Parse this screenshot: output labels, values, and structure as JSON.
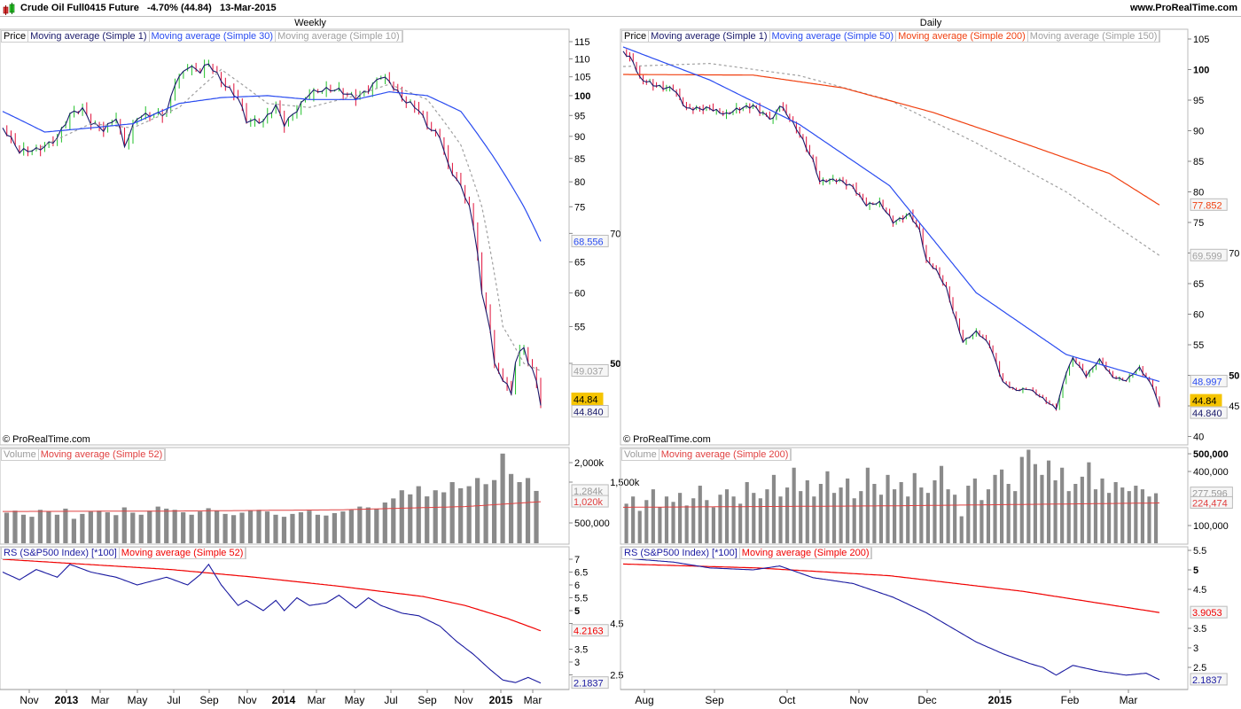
{
  "header": {
    "title": "Crude Oil Full0415 Future",
    "change": "-4.70% (44.84)",
    "date": "13-Mar-2015",
    "site": "www.ProRealTime.com"
  },
  "colors": {
    "up": "#22c02a",
    "down": "#e0103a",
    "price_line": "#1a1a6a",
    "ma_blue": "#2a4cf0",
    "ma_gray": "#a0a0a0",
    "ma_red": "#f04010",
    "vol": "#8a8a8a",
    "vol_ma": "#e04040",
    "rs": "#1a1aa0",
    "rs_ma": "#f00000",
    "last_bg": "#f5c400"
  },
  "copyright": "© ProRealTime.com",
  "weekly": {
    "period": "Weekly",
    "legend": [
      "Price",
      "Moving average (Simple 1)",
      "Moving average (Simple 30)",
      "Moving average (Simple 10)"
    ],
    "y_ticks": [
      "115",
      "110",
      "105",
      "100",
      "95",
      "90",
      "85",
      "80",
      "75",
      "70",
      "65",
      "60",
      "55",
      "50"
    ],
    "x_ticks": [
      "Nov",
      "2013",
      "Mar",
      "May",
      "Jul",
      "Sep",
      "Nov",
      "2014",
      "Mar",
      "May",
      "Jul",
      "Sep",
      "Nov",
      "2015",
      "Mar"
    ],
    "labels": {
      "ma30": "68.556",
      "ma10": "49.037",
      "last": "44.84",
      "close": "44.840"
    },
    "closes": [
      [
        0,
        92
      ],
      [
        4,
        86
      ],
      [
        8,
        87
      ],
      [
        13,
        90
      ],
      [
        16,
        95
      ],
      [
        19,
        96
      ],
      [
        21,
        93
      ],
      [
        24,
        92
      ],
      [
        27,
        95
      ],
      [
        29,
        88
      ],
      [
        32,
        94
      ],
      [
        36,
        95
      ],
      [
        39,
        96
      ],
      [
        41,
        104
      ],
      [
        44,
        108
      ],
      [
        47,
        106
      ],
      [
        49,
        108
      ],
      [
        52,
        104
      ],
      [
        56,
        100
      ],
      [
        58,
        94
      ],
      [
        62,
        93
      ],
      [
        65,
        97
      ],
      [
        67,
        93
      ],
      [
        70,
        97
      ],
      [
        73,
        101
      ],
      [
        77,
        101
      ],
      [
        80,
        101
      ],
      [
        84,
        100
      ],
      [
        87,
        102
      ],
      [
        90,
        105
      ],
      [
        92,
        103
      ],
      [
        95,
        99
      ],
      [
        99,
        97
      ],
      [
        101,
        93
      ],
      [
        104,
        90
      ],
      [
        106,
        83
      ],
      [
        108,
        80
      ],
      [
        110,
        77
      ],
      [
        111,
        75
      ],
      [
        113,
        67
      ],
      [
        114,
        60
      ],
      [
        116,
        55
      ],
      [
        117,
        50
      ],
      [
        119,
        48
      ],
      [
        121,
        46
      ],
      [
        122,
        50
      ],
      [
        124,
        52
      ],
      [
        125,
        50
      ],
      [
        127,
        48
      ],
      [
        128,
        44.84
      ]
    ],
    "ma30": [
      [
        0,
        96
      ],
      [
        10,
        91
      ],
      [
        21,
        92
      ],
      [
        31,
        93
      ],
      [
        42,
        98
      ],
      [
        52,
        99.5
      ],
      [
        63,
        100
      ],
      [
        73,
        99
      ],
      [
        84,
        99
      ],
      [
        92,
        101
      ],
      [
        101,
        100
      ],
      [
        109,
        96
      ],
      [
        117,
        85
      ],
      [
        124,
        75
      ],
      [
        128,
        68.556
      ]
    ],
    "ma10": [
      [
        8,
        87
      ],
      [
        21,
        93
      ],
      [
        31,
        92
      ],
      [
        42,
        97
      ],
      [
        52,
        107
      ],
      [
        63,
        98
      ],
      [
        73,
        97
      ],
      [
        84,
        100
      ],
      [
        92,
        103
      ],
      [
        101,
        99
      ],
      [
        109,
        88
      ],
      [
        114,
        75
      ],
      [
        119,
        55
      ],
      [
        124,
        50
      ],
      [
        128,
        49.037
      ]
    ],
    "volume": {
      "legend": [
        "Volume",
        "Moving average (Simple 52)"
      ],
      "y_ticks": [
        "2,000k",
        "1,500k",
        "500,000"
      ],
      "labels": {
        "vol": "1,284k",
        "ma": "1,020k"
      },
      "values_k": [
        750,
        800,
        700,
        650,
        820,
        780,
        700,
        850,
        600,
        720,
        780,
        800,
        760,
        690,
        880,
        750,
        700,
        800,
        900,
        850,
        820,
        760,
        700,
        780,
        860,
        800,
        720,
        690,
        750,
        800,
        820,
        780,
        700,
        650,
        720,
        760,
        800,
        700,
        680,
        740,
        780,
        820,
        900,
        880,
        850,
        1000,
        1100,
        1300,
        1200,
        1400,
        1150,
        1300,
        1250,
        1500,
        1350,
        1400,
        1600,
        1450,
        1550,
        2200,
        1700,
        1500,
        1600,
        1284
      ],
      "ma_k": [
        [
          0,
          780
        ],
        [
          40,
          790
        ],
        [
          80,
          820
        ],
        [
          110,
          900
        ],
        [
          128,
          1020
        ]
      ]
    },
    "rs": {
      "legend": [
        "RS (S&P500 Index) [*100]",
        "Moving average (Simple 52)"
      ],
      "y_ticks": [
        "7",
        "6.5",
        "6",
        "5.5",
        "5",
        "4.5",
        "3.5",
        "3",
        "2.5"
      ],
      "labels": {
        "ma": "4.2163",
        "rs": "2.1837"
      },
      "values": [
        [
          0,
          6.5
        ],
        [
          4,
          6.2
        ],
        [
          8,
          6.6
        ],
        [
          13,
          6.3
        ],
        [
          16,
          6.8
        ],
        [
          21,
          6.5
        ],
        [
          27,
          6.3
        ],
        [
          32,
          6.0
        ],
        [
          39,
          6.3
        ],
        [
          44,
          6.0
        ],
        [
          47,
          6.4
        ],
        [
          49,
          6.8
        ],
        [
          52,
          6.0
        ],
        [
          56,
          5.2
        ],
        [
          58,
          5.4
        ],
        [
          62,
          5.0
        ],
        [
          65,
          5.4
        ],
        [
          67,
          5.0
        ],
        [
          70,
          5.5
        ],
        [
          73,
          5.2
        ],
        [
          77,
          5.3
        ],
        [
          80,
          5.6
        ],
        [
          84,
          5.1
        ],
        [
          87,
          5.5
        ],
        [
          90,
          5.2
        ],
        [
          95,
          4.9
        ],
        [
          99,
          4.8
        ],
        [
          104,
          4.4
        ],
        [
          108,
          3.8
        ],
        [
          112,
          3.3
        ],
        [
          116,
          2.7
        ],
        [
          119,
          2.3
        ],
        [
          122,
          2.2
        ],
        [
          125,
          2.4
        ],
        [
          128,
          2.1837
        ]
      ],
      "ma": [
        [
          0,
          7.0
        ],
        [
          20,
          6.8
        ],
        [
          40,
          6.6
        ],
        [
          60,
          6.3
        ],
        [
          80,
          5.95
        ],
        [
          100,
          5.55
        ],
        [
          110,
          5.2
        ],
        [
          120,
          4.7
        ],
        [
          128,
          4.2163
        ]
      ]
    }
  },
  "daily": {
    "period": "Daily",
    "legend": [
      "Price",
      "Moving average (Simple 1)",
      "Moving average (Simple 50)",
      "Moving average (Simple 200)",
      "Moving average (Simple 150)"
    ],
    "y_ticks": [
      "105",
      "100",
      "95",
      "90",
      "85",
      "80",
      "75",
      "70",
      "65",
      "60",
      "55",
      "50",
      "45",
      "40"
    ],
    "x_ticks": [
      "Aug",
      "Sep",
      "Oct",
      "Nov",
      "Dec",
      "2015",
      "Feb",
      "Mar"
    ],
    "labels": {
      "ma200": "77.852",
      "ma150": "69.599",
      "ma50": "48.997",
      "last": "44.84",
      "close": "44.840"
    },
    "closes": [
      [
        0,
        103
      ],
      [
        3,
        101
      ],
      [
        5,
        98.3
      ],
      [
        10,
        97.6
      ],
      [
        15,
        96.9
      ],
      [
        19,
        93.3
      ],
      [
        26,
        94
      ],
      [
        31,
        92.5
      ],
      [
        39,
        94.3
      ],
      [
        45,
        91.8
      ],
      [
        47,
        94
      ],
      [
        53,
        89.6
      ],
      [
        57,
        85.3
      ],
      [
        59,
        81.7
      ],
      [
        65,
        81.7
      ],
      [
        69,
        81
      ],
      [
        73,
        78
      ],
      [
        77,
        78
      ],
      [
        81,
        75
      ],
      [
        86,
        76.6
      ],
      [
        89,
        73.7
      ],
      [
        91,
        68.6
      ],
      [
        94,
        67
      ],
      [
        97,
        64.3
      ],
      [
        99,
        60.7
      ],
      [
        102,
        55.6
      ],
      [
        106,
        57
      ],
      [
        110,
        54.9
      ],
      [
        114,
        49
      ],
      [
        118,
        47.6
      ],
      [
        122,
        47.6
      ],
      [
        126,
        46.2
      ],
      [
        130,
        44.7
      ],
      [
        133,
        50.5
      ],
      [
        135,
        52.7
      ],
      [
        139,
        49.8
      ],
      [
        143,
        52.7
      ],
      [
        147,
        49.8
      ],
      [
        151,
        49
      ],
      [
        155,
        51.2
      ],
      [
        159,
        48.3
      ],
      [
        161,
        44.84
      ]
    ],
    "ma50": [
      [
        0,
        103.7
      ],
      [
        26,
        98.3
      ],
      [
        53,
        91
      ],
      [
        80,
        81
      ],
      [
        106,
        63.5
      ],
      [
        133,
        53.4
      ],
      [
        161,
        48.997
      ]
    ],
    "ma200": [
      [
        0,
        99.2
      ],
      [
        39,
        99.1
      ],
      [
        66,
        97
      ],
      [
        93,
        93
      ],
      [
        120,
        88
      ],
      [
        146,
        83
      ],
      [
        161,
        77.852
      ]
    ],
    "ma150": [
      [
        0,
        100.5
      ],
      [
        26,
        101
      ],
      [
        53,
        99
      ],
      [
        80,
        95
      ],
      [
        106,
        88
      ],
      [
        133,
        80
      ],
      [
        161,
        69.599
      ]
    ],
    "volume": {
      "legend": [
        "Volume",
        "Moving average (Simple 200)"
      ],
      "y_ticks": [
        "500,000",
        "400,000",
        "100,000"
      ],
      "labels": {
        "vol": "277,596",
        "ma": "224,474"
      },
      "values_k": [
        220,
        260,
        180,
        240,
        300,
        200,
        260,
        230,
        280,
        210,
        250,
        320,
        240,
        200,
        270,
        300,
        260,
        220,
        340,
        280,
        250,
        300,
        380,
        260,
        310,
        420,
        290,
        350,
        260,
        330,
        400,
        280,
        310,
        360,
        250,
        290,
        420,
        330,
        270,
        380,
        300,
        340,
        260,
        390,
        310,
        280,
        350,
        430,
        300,
        270,
        150,
        320,
        360,
        240,
        300,
        380,
        410,
        330,
        290,
        480,
        520,
        440,
        380,
        460,
        350,
        420,
        290,
        330,
        370,
        450,
        300,
        360,
        280,
        340,
        310,
        290,
        320,
        300,
        260,
        278
      ],
      "ma_k": [
        [
          0,
          200
        ],
        [
          80,
          208
        ],
        [
          161,
          224
        ]
      ]
    },
    "rs": {
      "legend": [
        "RS (S&P500 Index) [*100]",
        "Moving average (Simple 200)"
      ],
      "y_ticks": [
        "5.5",
        "5",
        "4.5",
        "3.5",
        "3",
        "2.5"
      ],
      "labels": {
        "ma": "3.9053",
        "rs": "2.1837"
      },
      "values": [
        [
          0,
          5.3
        ],
        [
          15,
          5.2
        ],
        [
          26,
          5.05
        ],
        [
          39,
          5.0
        ],
        [
          47,
          5.1
        ],
        [
          57,
          4.8
        ],
        [
          69,
          4.65
        ],
        [
          81,
          4.3
        ],
        [
          91,
          3.9
        ],
        [
          99,
          3.5
        ],
        [
          106,
          3.15
        ],
        [
          114,
          2.85
        ],
        [
          122,
          2.6
        ],
        [
          126,
          2.5
        ],
        [
          130,
          2.3
        ],
        [
          135,
          2.55
        ],
        [
          143,
          2.4
        ],
        [
          151,
          2.3
        ],
        [
          157,
          2.35
        ],
        [
          161,
          2.1837
        ]
      ],
      "ma": [
        [
          0,
          5.15
        ],
        [
          40,
          5.05
        ],
        [
          80,
          4.85
        ],
        [
          120,
          4.45
        ],
        [
          161,
          3.9053
        ]
      ]
    }
  }
}
